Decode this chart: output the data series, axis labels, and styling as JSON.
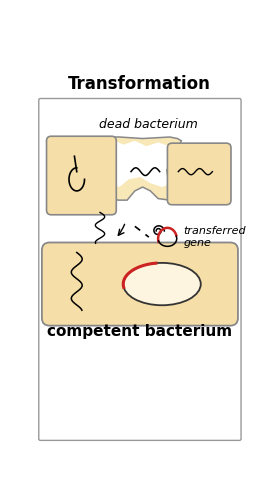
{
  "title": "Transformation",
  "label_dead": "dead bacterium",
  "label_transferred": "transferred\ngene",
  "label_competent": "competent bacterium",
  "bg_color": "#ffffff",
  "cell_fill": "#f5dea8",
  "cell_edge": "#888888",
  "cell_fill_light": "#fdf0cc",
  "title_fontsize": 12,
  "label_dead_fontsize": 9,
  "label_transferred_fontsize": 8,
  "competent_label_fontsize": 11
}
